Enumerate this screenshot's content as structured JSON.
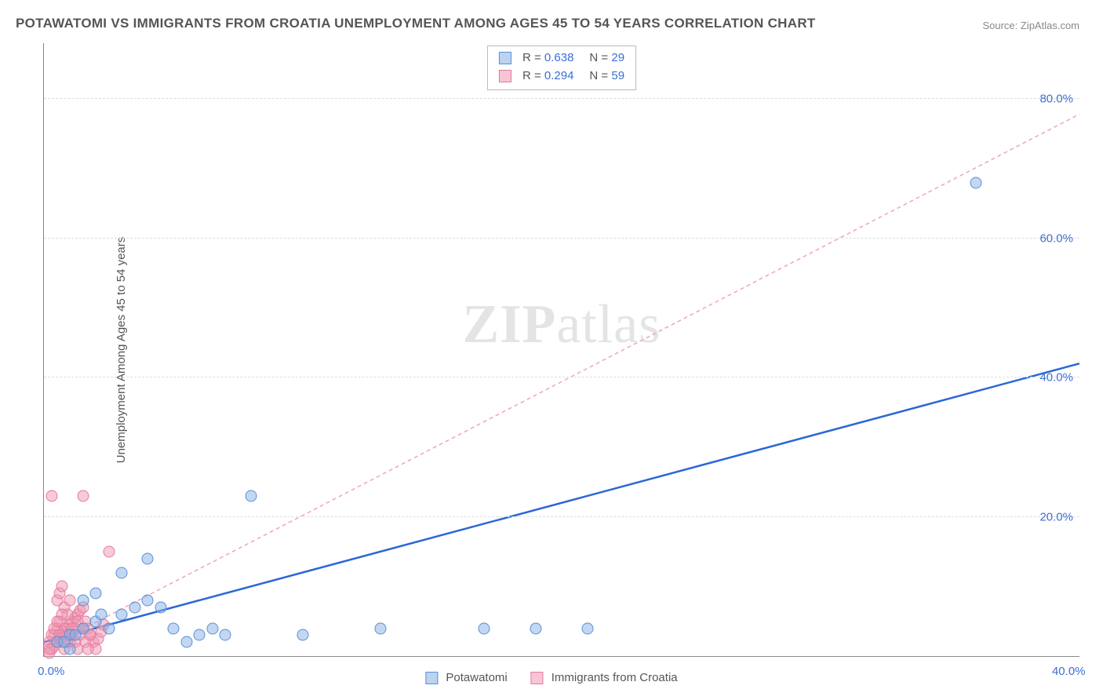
{
  "title": "POTAWATOMI VS IMMIGRANTS FROM CROATIA UNEMPLOYMENT AMONG AGES 45 TO 54 YEARS CORRELATION CHART",
  "source": "Source: ZipAtlas.com",
  "ylabel": "Unemployment Among Ages 45 to 54 years",
  "watermark_a": "ZIP",
  "watermark_b": "atlas",
  "chart": {
    "type": "scatter",
    "xlim": [
      0,
      40
    ],
    "ylim": [
      0,
      88
    ],
    "x_ticks": [
      {
        "value": 0,
        "label": "0.0%"
      },
      {
        "value": 40,
        "label": "40.0%"
      }
    ],
    "y_ticks": [
      {
        "value": 20,
        "label": "20.0%"
      },
      {
        "value": 40,
        "label": "40.0%"
      },
      {
        "value": 60,
        "label": "60.0%"
      },
      {
        "value": 80,
        "label": "80.0%"
      }
    ],
    "grid_color": "#dddddd",
    "background_color": "#ffffff",
    "series": [
      {
        "name": "Potawatomi",
        "marker_fill": "rgba(135,175,230,0.5)",
        "marker_stroke": "#5a8fd6",
        "swatch_fill": "#bcd3f0",
        "swatch_stroke": "#5a8fd6",
        "regression": {
          "R": "0.638",
          "N": "29",
          "slope": 1.0,
          "intercept": 2.0,
          "line_color": "#2b67d6",
          "line_width": 2.5,
          "dash": "none"
        },
        "points": [
          [
            0.5,
            2
          ],
          [
            1,
            3
          ],
          [
            1.5,
            4
          ],
          [
            2,
            5
          ],
          [
            2.5,
            4
          ],
          [
            3,
            6
          ],
          [
            3.5,
            7
          ],
          [
            4,
            8
          ],
          [
            4.5,
            7
          ],
          [
            5,
            4
          ],
          [
            5.5,
            2
          ],
          [
            6,
            3
          ],
          [
            6.5,
            4
          ],
          [
            7,
            3
          ],
          [
            8,
            23
          ],
          [
            4,
            14
          ],
          [
            3,
            12
          ],
          [
            2,
            9
          ],
          [
            1.5,
            8
          ],
          [
            13,
            4
          ],
          [
            17,
            4
          ],
          [
            19,
            4
          ],
          [
            21,
            4
          ],
          [
            10,
            3
          ],
          [
            36,
            68
          ],
          [
            1,
            1
          ],
          [
            0.8,
            2
          ],
          [
            1.2,
            3
          ],
          [
            2.2,
            6
          ]
        ]
      },
      {
        "name": "Immigrants from Croatia",
        "marker_fill": "rgba(240,150,175,0.5)",
        "marker_stroke": "#e47aa0",
        "swatch_fill": "#f7c5d6",
        "swatch_stroke": "#e47aa0",
        "regression": {
          "R": "0.294",
          "N": "59",
          "slope": 1.92,
          "intercept": 1.0,
          "line_color": "#f0a5bb",
          "line_width": 1.5,
          "dash": "5,4"
        },
        "points": [
          [
            0.2,
            0.5
          ],
          [
            0.3,
            1
          ],
          [
            0.4,
            1.5
          ],
          [
            0.5,
            2
          ],
          [
            0.6,
            2.5
          ],
          [
            0.7,
            3
          ],
          [
            0.8,
            3.5
          ],
          [
            0.9,
            4
          ],
          [
            1,
            4.5
          ],
          [
            1.1,
            5
          ],
          [
            1.2,
            5.5
          ],
          [
            1.3,
            6
          ],
          [
            1.4,
            6.5
          ],
          [
            1.5,
            7
          ],
          [
            1.6,
            5
          ],
          [
            1.7,
            4
          ],
          [
            1.8,
            3
          ],
          [
            1.9,
            2
          ],
          [
            2,
            1
          ],
          [
            2.1,
            2.5
          ],
          [
            2.2,
            3.5
          ],
          [
            2.3,
            4.5
          ],
          [
            0.3,
            23
          ],
          [
            1.5,
            23
          ],
          [
            0.5,
            8
          ],
          [
            0.6,
            9
          ],
          [
            0.7,
            10
          ],
          [
            0.8,
            7
          ],
          [
            0.9,
            6
          ],
          [
            1,
            8
          ],
          [
            0.4,
            3
          ],
          [
            0.5,
            4
          ],
          [
            0.6,
            5
          ],
          [
            0.7,
            6
          ],
          [
            0.8,
            4
          ],
          [
            0.9,
            3
          ],
          [
            1,
            2
          ],
          [
            1.1,
            3
          ],
          [
            1.2,
            4
          ],
          [
            1.3,
            5
          ],
          [
            0.2,
            2
          ],
          [
            0.3,
            3
          ],
          [
            0.4,
            4
          ],
          [
            0.5,
            5
          ],
          [
            0.6,
            3
          ],
          [
            0.7,
            2
          ],
          [
            0.8,
            1
          ],
          [
            0.9,
            2
          ],
          [
            1,
            3
          ],
          [
            1.1,
            4
          ],
          [
            1.2,
            2
          ],
          [
            1.3,
            1
          ],
          [
            1.4,
            3
          ],
          [
            1.5,
            4
          ],
          [
            1.6,
            2
          ],
          [
            1.7,
            1
          ],
          [
            1.8,
            3
          ],
          [
            2.5,
            15
          ],
          [
            0.2,
            1
          ]
        ]
      }
    ]
  },
  "legend": {
    "items": [
      {
        "label": "Potawatomi",
        "swatch_fill": "#bcd3f0",
        "swatch_stroke": "#5a8fd6"
      },
      {
        "label": "Immigrants from Croatia",
        "swatch_fill": "#f7c5d6",
        "swatch_stroke": "#e47aa0"
      }
    ]
  }
}
